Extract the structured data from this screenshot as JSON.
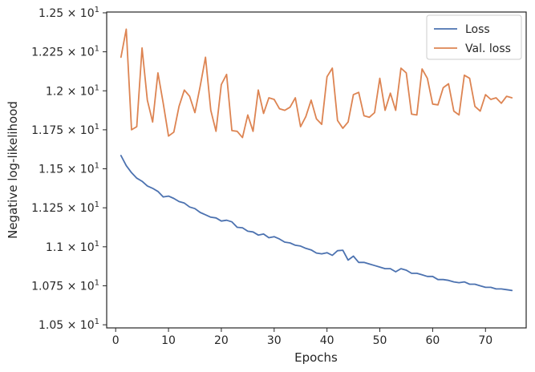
{
  "chart_data": {
    "type": "line",
    "xlabel": "Epochs",
    "ylabel": "Negative log-likelihood",
    "xlim": [
      -1.7,
      77.7
    ],
    "ylim": [
      10.48,
      12.505
    ],
    "x_ticks": [
      0,
      10,
      20,
      30,
      40,
      50,
      60,
      70
    ],
    "x_tick_labels": [
      "0",
      "10",
      "20",
      "30",
      "40",
      "50",
      "60",
      "70"
    ],
    "y_ticks": [
      {
        "value": 10.5,
        "mantissa": "1.05",
        "exp": "1"
      },
      {
        "value": 10.75,
        "mantissa": "1.075",
        "exp": "1"
      },
      {
        "value": 11.0,
        "mantissa": "1.1",
        "exp": "1"
      },
      {
        "value": 11.25,
        "mantissa": "1.125",
        "exp": "1"
      },
      {
        "value": 11.5,
        "mantissa": "1.15",
        "exp": "1"
      },
      {
        "value": 11.75,
        "mantissa": "1.175",
        "exp": "1"
      },
      {
        "value": 12.0,
        "mantissa": "1.2",
        "exp": "1"
      },
      {
        "value": 12.25,
        "mantissa": "1.225",
        "exp": "1"
      },
      {
        "value": 12.5,
        "mantissa": "1.25",
        "exp": "1"
      }
    ],
    "times_symbol": "×",
    "base": "10",
    "grid": false,
    "legend_position": "top-right",
    "x": [
      1,
      2,
      3,
      4,
      5,
      6,
      7,
      8,
      9,
      10,
      11,
      12,
      13,
      14,
      15,
      16,
      17,
      18,
      19,
      20,
      21,
      22,
      23,
      24,
      25,
      26,
      27,
      28,
      29,
      30,
      31,
      32,
      33,
      34,
      35,
      36,
      37,
      38,
      39,
      40,
      41,
      42,
      43,
      44,
      45,
      46,
      47,
      48,
      49,
      50,
      51,
      52,
      53,
      54,
      55,
      56,
      57,
      58,
      59,
      60,
      61,
      62,
      63,
      64,
      65,
      66,
      67,
      68,
      69,
      70,
      71,
      72,
      73,
      74,
      75
    ],
    "series": [
      {
        "name": "Loss",
        "color": "#4c72b0",
        "values": [
          11.585,
          11.52,
          11.475,
          11.44,
          11.42,
          11.39,
          11.375,
          11.355,
          11.32,
          11.325,
          11.31,
          11.29,
          11.28,
          11.255,
          11.245,
          11.22,
          11.205,
          11.19,
          11.185,
          11.165,
          11.17,
          11.16,
          11.125,
          11.122,
          11.1,
          11.095,
          11.075,
          11.082,
          11.058,
          11.065,
          11.05,
          11.03,
          11.025,
          11.01,
          11.005,
          10.99,
          10.98,
          10.96,
          10.955,
          10.962,
          10.945,
          10.975,
          10.978,
          10.915,
          10.94,
          10.9,
          10.9,
          10.89,
          10.88,
          10.87,
          10.86,
          10.86,
          10.84,
          10.86,
          10.85,
          10.83,
          10.83,
          10.82,
          10.81,
          10.81,
          10.79,
          10.79,
          10.785,
          10.775,
          10.77,
          10.775,
          10.76,
          10.76,
          10.75,
          10.74,
          10.74,
          10.73,
          10.73,
          10.725,
          10.72
        ]
      },
      {
        "name": "Val. loss",
        "color": "#dd8452",
        "values": [
          12.215,
          12.395,
          11.75,
          11.77,
          12.275,
          11.94,
          11.8,
          12.115,
          11.92,
          11.71,
          11.735,
          11.9,
          12.005,
          11.965,
          11.86,
          12.03,
          12.215,
          11.875,
          11.74,
          12.04,
          12.105,
          11.745,
          11.74,
          11.7,
          11.845,
          11.74,
          12.005,
          11.855,
          11.955,
          11.945,
          11.885,
          11.875,
          11.895,
          11.955,
          11.77,
          11.835,
          11.94,
          11.82,
          11.785,
          12.09,
          12.145,
          11.81,
          11.76,
          11.8,
          11.975,
          11.99,
          11.84,
          11.83,
          11.86,
          12.08,
          11.875,
          11.985,
          11.875,
          12.145,
          12.115,
          11.85,
          11.845,
          12.14,
          12.08,
          11.915,
          11.91,
          12.02,
          12.045,
          11.87,
          11.845,
          12.1,
          12.08,
          11.9,
          11.87,
          11.975,
          11.945,
          11.955,
          11.92,
          11.965,
          11.955
        ]
      }
    ]
  }
}
